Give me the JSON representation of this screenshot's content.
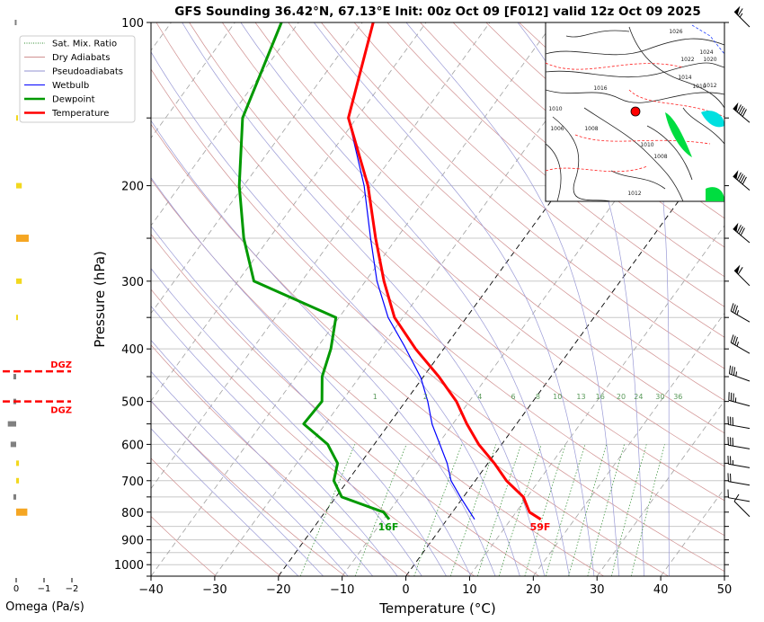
{
  "chart_data": {
    "type": "line",
    "title": "GFS Sounding 36.42°N, 67.13°E Init: 00z Oct 09 [F012] valid 12z Oct 09 2025",
    "xlabel": "Temperature (°C)",
    "ylabel": "Pressure (hPa)",
    "xlim": [
      -40,
      50
    ],
    "ylim": [
      1050,
      100
    ],
    "y_scale": "log",
    "grid": true,
    "skewed_isotherms": true,
    "x_ticks": [
      "−40",
      "−30",
      "−20",
      "−10",
      "0",
      "10",
      "20",
      "30",
      "40",
      "50"
    ],
    "y_ticks": [
      "100",
      "200",
      "300",
      "400",
      "500",
      "600",
      "700",
      "800",
      "900",
      "1000"
    ],
    "legend_position": "top-left",
    "legend": [
      {
        "label": "Sat. Mix. Ratio",
        "color": "#2e8b2e",
        "style": "dotted"
      },
      {
        "label": "Dry Adiabats",
        "color": "#d09090",
        "style": "solid"
      },
      {
        "label": "Pseudoadiabats",
        "color": "#9090d0",
        "style": "solid"
      },
      {
        "label": "Wetbulb",
        "color": "#0000ff",
        "style": "solid"
      },
      {
        "label": "Dewpoint",
        "color": "#009900",
        "style": "thick"
      },
      {
        "label": "Temperature",
        "color": "#ff0000",
        "style": "thick"
      }
    ],
    "series": [
      {
        "name": "Temperature",
        "color": "#ff0000",
        "pressure": [
          825,
          800,
          750,
          700,
          650,
          600,
          550,
          500,
          450,
          400,
          350,
          300,
          250,
          200,
          150,
          100
        ],
        "values": [
          14.7,
          12.1,
          9.4,
          4.9,
          1.0,
          -3.6,
          -7.8,
          -12.0,
          -17.6,
          -24.4,
          -31.3,
          -37.1,
          -43.3,
          -50.5,
          -61.3,
          -68.3
        ]
      },
      {
        "name": "Dewpoint",
        "color": "#009900",
        "pressure": [
          825,
          800,
          750,
          700,
          650,
          600,
          550,
          500,
          450,
          400,
          350,
          300,
          250,
          200,
          150,
          100
        ],
        "values": [
          -9.1,
          -10.8,
          -19.1,
          -22.2,
          -23.6,
          -27.3,
          -33.4,
          -33.1,
          -35.9,
          -37.7,
          -40.5,
          -57.5,
          -64.0,
          -70.7,
          -77.9,
          -82.7
        ]
      },
      {
        "name": "Wetbulb",
        "color": "#0000ff",
        "pressure": [
          825,
          753,
          700,
          650,
          551,
          500,
          452,
          395,
          350,
          300,
          250,
          200,
          150
        ],
        "values": [
          4.3,
          -0.3,
          -3.8,
          -6.4,
          -13.2,
          -16.5,
          -20.3,
          -26.5,
          -32.3,
          -38.2,
          -44.1,
          -51.1,
          -61.3
        ]
      }
    ],
    "annotations": {
      "surface_temperature": "59F",
      "surface_dewpoint": "16F",
      "mixing_ratio_labels": [
        "1",
        "2",
        "4",
        "6",
        "8",
        "10",
        "13",
        "16",
        "20",
        "24",
        "30",
        "36"
      ],
      "mixing_ratio_values": [
        1,
        2,
        4,
        6,
        8,
        10,
        13,
        16,
        20,
        24,
        30,
        36
      ]
    },
    "wind_barbs": {
      "pressure": [
        100,
        150,
        200,
        250,
        300,
        350,
        400,
        450,
        500,
        550,
        600,
        650,
        700,
        750,
        800
      ],
      "speed_kt": [
        65,
        90,
        90,
        80,
        60,
        35,
        35,
        35,
        35,
        30,
        30,
        25,
        20,
        10,
        10
      ],
      "direction_deg": [
        315,
        310,
        310,
        310,
        315,
        300,
        300,
        290,
        285,
        280,
        280,
        280,
        280,
        280,
        315
      ]
    },
    "omega_panel": {
      "xlabel": "Omega (Pa/s)",
      "x_ticks": [
        "0",
        "−1",
        "−2"
      ],
      "xlim": [
        0.5,
        -2
      ],
      "pressure": [
        100,
        150,
        200,
        250,
        300,
        350,
        450,
        500,
        550,
        600,
        650,
        700,
        750,
        800
      ],
      "values": [
        0.05,
        -0.03,
        -0.2,
        -0.45,
        -0.2,
        -0.05,
        0.1,
        0.1,
        0.3,
        0.2,
        -0.1,
        -0.1,
        0.1,
        -0.4
      ],
      "colors": {
        "positive": "#808080",
        "weak_negative": "#f2d81e",
        "strong_negative": "#f5a623"
      },
      "dgz_label": "DGZ",
      "dgz_pressures": [
        440,
        500
      ],
      "dgz_color": "#ff0000"
    },
    "inset_map": {
      "isobar_labels": [
        "1026",
        "1024",
        "1022",
        "1020",
        "1016",
        "1014",
        "1012",
        "1010",
        "1010",
        "1008",
        "1006",
        "1010",
        "1008",
        "1012"
      ],
      "marker_color": "#ff0000"
    }
  }
}
